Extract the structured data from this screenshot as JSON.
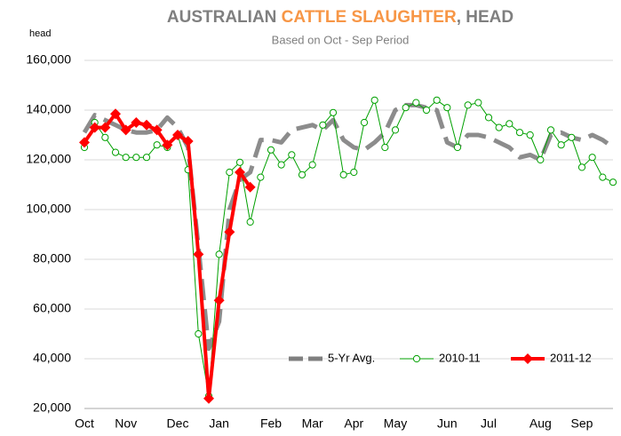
{
  "chart_data": {
    "type": "line",
    "title": {
      "part1": "AUSTRALIAN",
      "part2": "CATTLE SLAUGHTER",
      "part3": ",  HEAD"
    },
    "title_colors": [
      "#7f7f7f",
      "#f79646",
      "#7f7f7f"
    ],
    "subtitle": "Based on Oct - Sep Period",
    "y_label": "head",
    "categories": [
      "Oct",
      null,
      null,
      null,
      "Nov",
      null,
      null,
      null,
      null,
      "Dec",
      null,
      null,
      null,
      "Jan",
      null,
      null,
      null,
      null,
      "Feb",
      null,
      null,
      null,
      "Mar",
      null,
      null,
      null,
      "Apr",
      null,
      null,
      null,
      "May",
      null,
      null,
      null,
      null,
      "Jun",
      null,
      null,
      null,
      "Jul",
      null,
      null,
      null,
      null,
      "Aug",
      null,
      null,
      null,
      "Sep",
      null,
      null,
      null
    ],
    "ylim": [
      20000,
      160000
    ],
    "yticks": [
      {
        "value": 20000,
        "label": "20,000"
      },
      {
        "value": 40000,
        "label": "40,000"
      },
      {
        "value": 60000,
        "label": "60,000"
      },
      {
        "value": 80000,
        "label": "80,000"
      },
      {
        "value": 100000,
        "label": "100,000"
      },
      {
        "value": 120000,
        "label": "120,000"
      },
      {
        "value": 140000,
        "label": "140,000"
      },
      {
        "value": 160000,
        "label": "160,000"
      }
    ],
    "grid": true,
    "legend": "bottom-right",
    "series": [
      {
        "name": "5-Yr Avg.",
        "color": "#7f7f7f",
        "style": "dashed",
        "values": [
          131000,
          138000,
          136000,
          134000,
          132000,
          131000,
          131000,
          132000,
          137000,
          133000,
          125000,
          85000,
          44000,
          55000,
          100000,
          112000,
          115000,
          128000,
          128000,
          127000,
          132000,
          133000,
          134000,
          132000,
          136000,
          128000,
          125000,
          124000,
          127000,
          131000,
          140000,
          142000,
          142000,
          141000,
          140000,
          127000,
          125000,
          130000,
          130000,
          129000,
          127000,
          125000,
          121000,
          122000,
          120000,
          130000,
          131000,
          129000,
          128000,
          130000,
          128000,
          125000
        ]
      },
      {
        "name": "2010-11",
        "color": "#00a000",
        "style": "circle",
        "values": [
          125000,
          135000,
          129000,
          123000,
          121000,
          121000,
          121000,
          126000,
          125000,
          130000,
          116000,
          50000,
          25000,
          82000,
          115000,
          119000,
          95000,
          113000,
          124000,
          118000,
          122000,
          114000,
          118000,
          134000,
          139000,
          114000,
          115000,
          135000,
          144000,
          125000,
          132000,
          141000,
          143000,
          140000,
          144000,
          141000,
          125000,
          142000,
          143000,
          137000,
          133000,
          134500,
          131000,
          130000,
          120000,
          132000,
          126000,
          129000,
          117000,
          121000,
          113000,
          111000
        ]
      },
      {
        "name": "2011-12",
        "color": "#ff0000",
        "style": "diamond",
        "values": [
          127000,
          133000,
          133000,
          138500,
          132000,
          135000,
          134000,
          132000,
          126000,
          130000,
          127500,
          82000,
          24000,
          63500,
          91000,
          115000,
          109000,
          null,
          null,
          null,
          null,
          null,
          null,
          null,
          null,
          null,
          null,
          null,
          null,
          null,
          null,
          null,
          null,
          null,
          null,
          null,
          null,
          null,
          null,
          null,
          null,
          null,
          null,
          null,
          null,
          null,
          null,
          null,
          null,
          null,
          null,
          null
        ]
      }
    ]
  }
}
